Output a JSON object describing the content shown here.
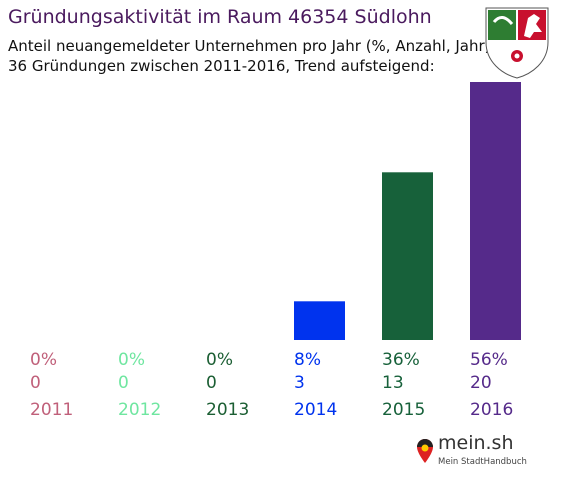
{
  "title": "Gründungsaktivität im Raum 46354 Südlohn",
  "subtitle_line1": "Anteil neuangemeldeter Unternehmen pro Jahr (%, Anzahl, Jahr)",
  "subtitle_line2": "36 Gründungen zwischen 2011-2016, Trend aufsteigend:",
  "logo": {
    "icon": "nrw-coat-of-arms-icon",
    "colors": {
      "green": "#2e7d32",
      "white": "#ffffff",
      "red": "#c8102e"
    }
  },
  "brand": {
    "name": "mein.sh",
    "tagline": "Mein StadtHandbuch",
    "icon": "map-pin-icon"
  },
  "chart_data": {
    "type": "bar",
    "categories": [
      "2011",
      "2012",
      "2013",
      "2014",
      "2015",
      "2016"
    ],
    "series": [
      {
        "values": [
          0,
          0,
          0,
          3,
          13,
          20
        ]
      }
    ],
    "percent_labels": [
      "0%",
      "0%",
      "0%",
      "8%",
      "36%",
      "56%"
    ],
    "count_labels": [
      "0",
      "0",
      "0",
      "3",
      "13",
      "20"
    ],
    "colors": [
      "#c0607a",
      "#6fe6a0",
      "#1b5e33",
      "#0033ee",
      "#17613a",
      "#552a8a"
    ],
    "grid": false,
    "legend": "none"
  }
}
